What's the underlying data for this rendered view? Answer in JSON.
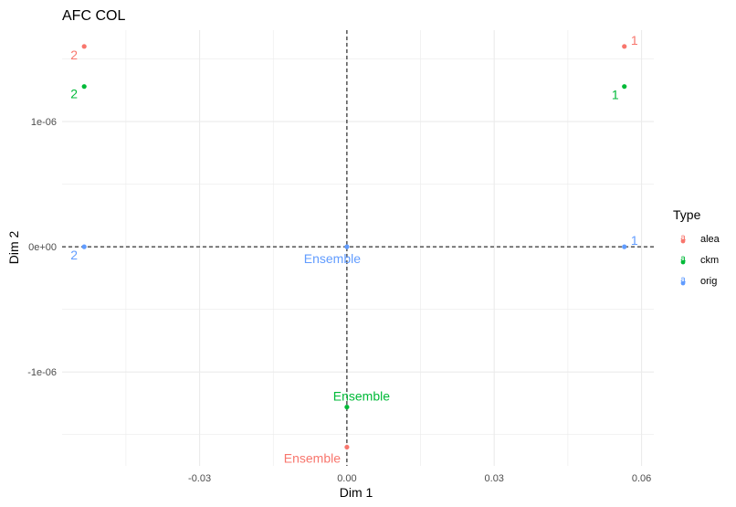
{
  "chart_data": {
    "type": "scatter",
    "title": "AFC COL",
    "xlabel": "Dim 1",
    "ylabel": "Dim 2",
    "xlim": [
      -0.058,
      0.0625
    ],
    "ylim": [
      -1.75e-06,
      1.73e-06
    ],
    "x_ticks": [
      -0.03,
      0,
      0.03,
      0.06
    ],
    "x_tick_labels": [
      "-0.03",
      "0.00",
      "0.03",
      "0.06"
    ],
    "y_ticks": [
      -1e-06,
      0,
      1e-06
    ],
    "y_tick_labels": [
      "-1e-06",
      "0e+00",
      "1e-06"
    ],
    "grid": true,
    "reference_lines": {
      "x": 0,
      "y": 0,
      "style": "dashed"
    },
    "legend": {
      "title": "Type",
      "position": "right",
      "glyph": "a"
    },
    "series": [
      {
        "name": "alea",
        "color": "#F8766D",
        "points": [
          {
            "label": "2",
            "x": -0.0535,
            "y": 1.6e-06
          },
          {
            "label": "1",
            "x": 0.0565,
            "y": 1.6e-06
          },
          {
            "label": "Ensemble",
            "x": 0.0,
            "y": -1.6e-06
          }
        ]
      },
      {
        "name": "ckm",
        "color": "#00BA38",
        "points": [
          {
            "label": "2",
            "x": -0.0535,
            "y": 1.28e-06
          },
          {
            "label": "1",
            "x": 0.0565,
            "y": 1.28e-06
          },
          {
            "label": "Ensemble",
            "x": 0.0,
            "y": -1.28e-06
          }
        ]
      },
      {
        "name": "orig",
        "color": "#619CFF",
        "points": [
          {
            "label": "2",
            "x": -0.0535,
            "y": 0.0
          },
          {
            "label": "1",
            "x": 0.0565,
            "y": 0.0
          },
          {
            "label": "Ensemble",
            "x": 0.0,
            "y": 0.0
          }
        ]
      }
    ]
  }
}
